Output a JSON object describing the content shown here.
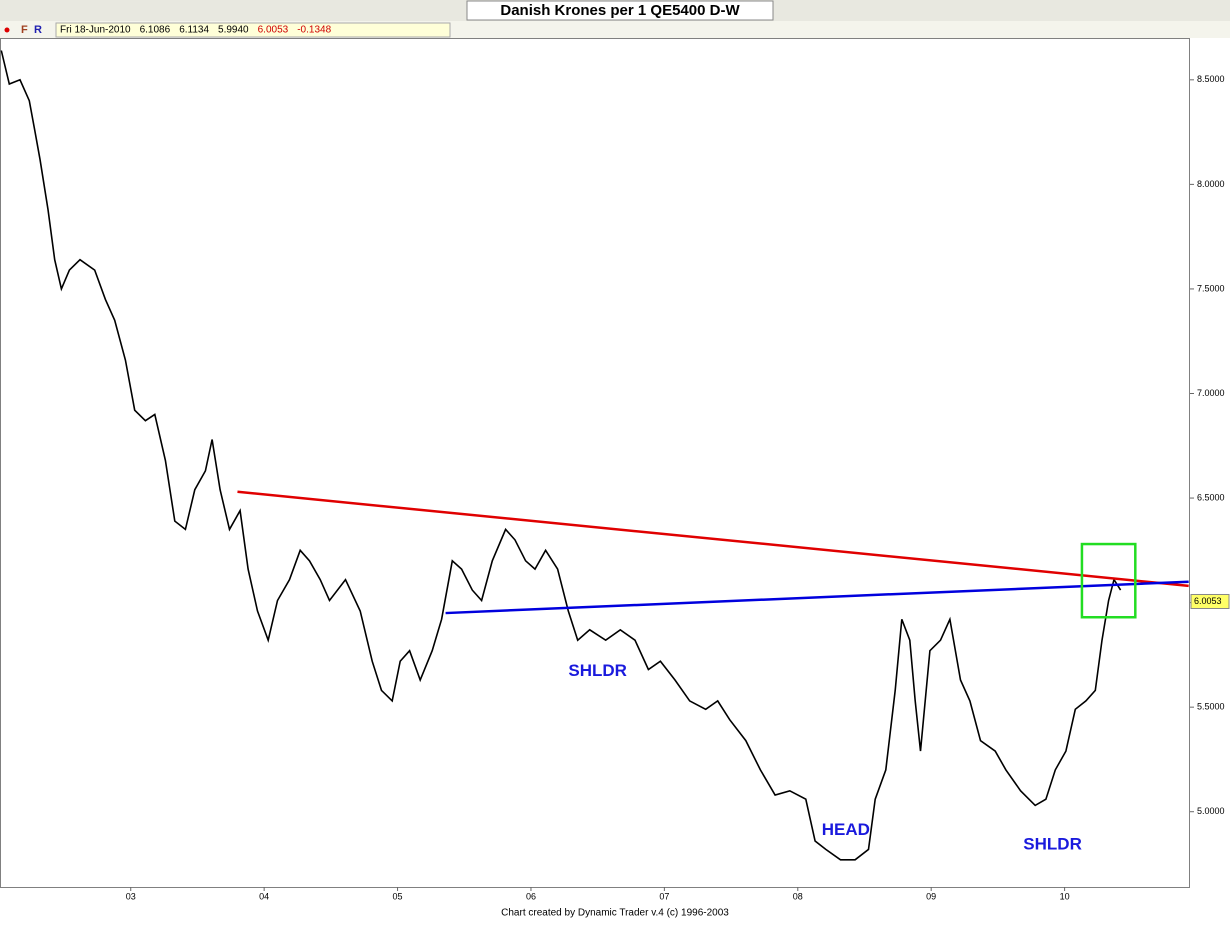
{
  "chart_data": {
    "type": "line",
    "title": "Danish Krones per 1 QE5400 D-W",
    "toolbar": [
      "F",
      "R"
    ],
    "info": [
      "Fri 18-Jun-2010",
      "6.1086",
      "6.1134",
      "5.9940",
      "6.0053",
      "-0.1348"
    ],
    "info_colors": [
      "#000000",
      "#000000",
      "#000000",
      "#000000",
      "#d00000",
      "#d00000"
    ],
    "footer": "Chart created by Dynamic Trader v.4  (c) 1996-2003",
    "last_price": 6.0053,
    "xlim": [
      2002.02,
      2010.94
    ],
    "ylim": [
      4.64,
      8.7
    ],
    "xticks": [
      {
        "value": 2003,
        "label": "03"
      },
      {
        "value": 2004,
        "label": "04"
      },
      {
        "value": 2005,
        "label": "05"
      },
      {
        "value": 2006,
        "label": "06"
      },
      {
        "value": 2007,
        "label": "07"
      },
      {
        "value": 2008,
        "label": "08"
      },
      {
        "value": 2009,
        "label": "09"
      },
      {
        "value": 2010,
        "label": "10"
      }
    ],
    "yticks": [
      {
        "value": 5,
        "label": "5.0000"
      },
      {
        "value": 5.5,
        "label": "5.5000"
      },
      {
        "value": 6,
        "label": "6.0000"
      },
      {
        "value": 6.5,
        "label": "6.5000"
      },
      {
        "value": 7,
        "label": "7.0000"
      },
      {
        "value": 7.5,
        "label": "7.5000"
      },
      {
        "value": 8,
        "label": "8.0000"
      },
      {
        "value": 8.5,
        "label": "8.5000"
      }
    ],
    "series": [
      {
        "color": "#000000",
        "x": [
          2002.03,
          2002.09,
          2002.17,
          2002.24,
          2002.28,
          2002.32,
          2002.38,
          2002.43,
          2002.48,
          2002.54,
          2002.62,
          2002.73,
          2002.81,
          2002.88,
          2002.96,
          2003.03,
          2003.11,
          2003.18,
          2003.26,
          2003.33,
          2003.41,
          2003.48,
          2003.56,
          2003.61,
          2003.67,
          2003.74,
          2003.82,
          2003.88,
          2003.95,
          2004.03,
          2004.1,
          2004.19,
          2004.27,
          2004.34,
          2004.42,
          2004.49,
          2004.61,
          2004.72,
          2004.81,
          2004.88,
          2004.96,
          2005.02,
          2005.09,
          2005.17,
          2005.26,
          2005.33,
          2005.41,
          2005.48,
          2005.56,
          2005.63,
          2005.71,
          2005.81,
          2005.88,
          2005.96,
          2006.03,
          2006.11,
          2006.2,
          2006.28,
          2006.35,
          2006.44,
          2006.56,
          2006.67,
          2006.78,
          2006.88,
          2006.97,
          2007.08,
          2007.19,
          2007.31,
          2007.4,
          2007.49,
          2007.61,
          2007.72,
          2007.83,
          2007.94,
          2008.06,
          2008.13,
          2008.21,
          2008.32,
          2008.43,
          2008.53,
          2008.58,
          2008.66,
          2008.73,
          2008.78,
          2008.84,
          2008.88,
          2008.92,
          2008.99,
          2009.07,
          2009.14,
          2009.22,
          2009.29,
          2009.37,
          2009.48,
          2009.56,
          2009.67,
          2009.78,
          2009.86,
          2009.93,
          2010.01,
          2010.08,
          2010.16,
          2010.23,
          2010.28,
          2010.33,
          2010.37,
          2010.42
        ],
        "values": [
          8.64,
          8.48,
          8.5,
          8.4,
          8.26,
          8.12,
          7.88,
          7.64,
          7.5,
          7.59,
          7.64,
          7.59,
          7.45,
          7.35,
          7.16,
          6.92,
          6.87,
          6.9,
          6.68,
          6.39,
          6.35,
          6.54,
          6.63,
          6.78,
          6.54,
          6.35,
          6.44,
          6.16,
          5.96,
          5.82,
          6.01,
          6.11,
          6.25,
          6.2,
          6.11,
          6.01,
          6.11,
          5.96,
          5.72,
          5.58,
          5.53,
          5.72,
          5.77,
          5.63,
          5.77,
          5.92,
          6.2,
          6.16,
          6.06,
          6.01,
          6.2,
          6.35,
          6.3,
          6.2,
          6.16,
          6.25,
          6.16,
          5.96,
          5.82,
          5.87,
          5.82,
          5.87,
          5.82,
          5.68,
          5.72,
          5.63,
          5.53,
          5.49,
          5.53,
          5.44,
          5.34,
          5.2,
          5.08,
          5.1,
          5.06,
          4.86,
          4.82,
          4.77,
          4.77,
          4.82,
          5.06,
          5.2,
          5.58,
          5.92,
          5.82,
          5.53,
          5.29,
          5.77,
          5.82,
          5.92,
          5.63,
          5.53,
          5.34,
          5.29,
          5.2,
          5.1,
          5.03,
          5.06,
          5.2,
          5.29,
          5.49,
          5.53,
          5.58,
          5.82,
          6.01,
          6.11,
          6.06
        ]
      }
    ],
    "trendlines": [
      {
        "color": "#e00000",
        "x": [
          2003.8,
          2010.93
        ],
        "y": [
          6.53,
          6.08
        ]
      },
      {
        "color": "#0000dd",
        "x": [
          2005.36,
          2010.93
        ],
        "y": [
          5.95,
          6.1
        ]
      }
    ],
    "highlight_box": {
      "color": "#22dd22",
      "x": [
        2010.13,
        2010.53
      ],
      "y": [
        5.93,
        6.28
      ]
    },
    "annotations": [
      {
        "text": "SHLDR",
        "x": 2006.5,
        "y": 5.67
      },
      {
        "text": "HEAD",
        "x": 2008.36,
        "y": 4.91
      },
      {
        "text": "SHLDR",
        "x": 2009.91,
        "y": 4.84
      }
    ],
    "annotation_color": "#1a1add"
  }
}
